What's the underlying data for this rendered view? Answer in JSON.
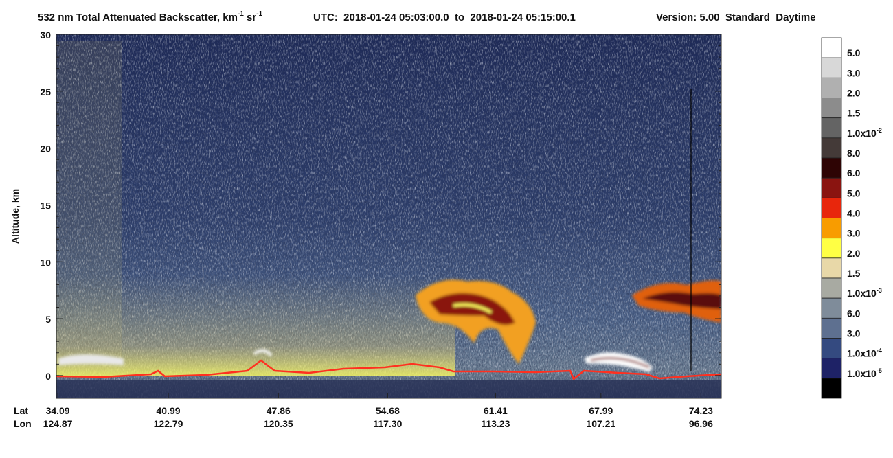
{
  "chart_data": {
    "type": "heatmap",
    "title_parts": [
      "532 nm Total Attenuated Backscatter, km",
      "-1",
      " sr",
      "-1"
    ],
    "time_range": "UTC:  2018-01-24 05:03:00.0  to  2018-01-24 05:15:00.1",
    "version": "Version: 5.00  Standard  Daytime",
    "ylabel": "Altitude, km",
    "ylim": [
      -2,
      30
    ],
    "yticks": [
      0,
      5,
      10,
      15,
      20,
      25,
      30
    ],
    "xlim": [
      34,
      75.5
    ],
    "lat_label": "Lat",
    "lon_label": "Lon",
    "xticks": [
      34.09,
      40.99,
      47.86,
      54.68,
      61.41,
      67.99,
      74.23
    ],
    "lon_labels": [
      "124.87",
      "122.79",
      "120.35",
      "117.30",
      "113.23",
      "107.21",
      "96.96"
    ],
    "colorbar": [
      {
        "color": "#ffffff",
        "label": "5.0"
      },
      {
        "color": "#d8d8d8",
        "label": "3.0"
      },
      {
        "color": "#b0b0b0",
        "label": "2.0"
      },
      {
        "color": "#8c8c8c",
        "label": "1.5"
      },
      {
        "color": "#646464",
        "label": "1.0x10",
        "exp": "-2"
      },
      {
        "color": "#443a38",
        "label": "8.0"
      },
      {
        "color": "#2e0404",
        "label": "6.0"
      },
      {
        "color": "#8a1410",
        "label": "5.0"
      },
      {
        "color": "#e8260c",
        "label": "4.0"
      },
      {
        "color": "#f89c00",
        "label": "3.0"
      },
      {
        "color": "#ffff44",
        "label": "2.0"
      },
      {
        "color": "#e8d8a8",
        "label": "1.5"
      },
      {
        "color": "#a8aaa2",
        "label": "1.0x10",
        "exp": "-3"
      },
      {
        "color": "#7f8c9a",
        "label": "6.0"
      },
      {
        "color": "#5e7090",
        "label": "3.0"
      },
      {
        "color": "#344a80",
        "label": "1.0x10",
        "exp": "-4"
      },
      {
        "color": "#1e2266",
        "label": "1.0x10",
        "exp": "-5"
      },
      {
        "color": "#000000"
      }
    ]
  }
}
